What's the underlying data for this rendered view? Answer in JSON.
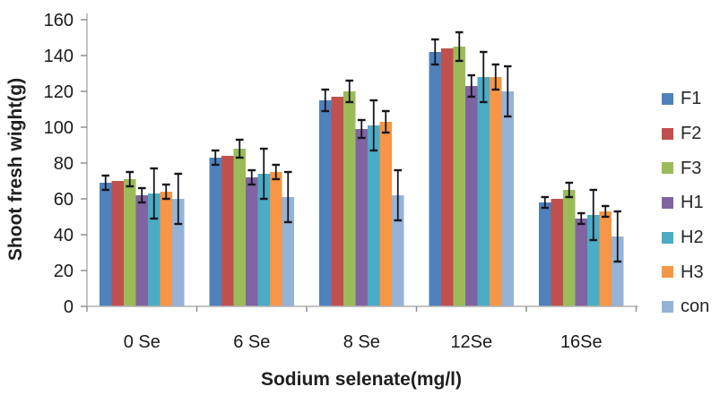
{
  "chart_data": {
    "type": "bar",
    "title": "",
    "xlabel": "Sodium selenate(mg/l)",
    "ylabel": "Shoot fresh wight(g)",
    "categories": [
      "0 Se",
      "6 Se",
      "8 Se",
      "12Se",
      "16Se"
    ],
    "y_axis": {
      "min": 0,
      "max": 160,
      "step": 20,
      "tick_labels": [
        "0",
        "20",
        "40",
        "60",
        "80",
        "100",
        "120",
        "140",
        "160"
      ]
    },
    "grid": false,
    "legend_position": "right",
    "error_bar_color": "#16161f",
    "axis_line_color": "#b0b0b0",
    "tick_color": "#8f8f8f",
    "text_color": "#1a1a1a",
    "series": [
      {
        "name": "F1",
        "color": "#4f81bd",
        "values": [
          69,
          83,
          115,
          142,
          58
        ],
        "errors": [
          4,
          4,
          6,
          7,
          3
        ]
      },
      {
        "name": "F2",
        "color": "#c0504d",
        "values": [
          70,
          84,
          117,
          144,
          60
        ],
        "errors": [
          0,
          0,
          0,
          0,
          0
        ]
      },
      {
        "name": "F3",
        "color": "#9bbb59",
        "values": [
          71,
          88,
          120,
          145,
          65
        ],
        "errors": [
          4,
          5,
          6,
          8,
          4
        ]
      },
      {
        "name": "H1",
        "color": "#8064a2",
        "values": [
          62,
          72,
          99,
          123,
          49
        ],
        "errors": [
          4,
          4,
          5,
          6,
          3
        ]
      },
      {
        "name": "H2",
        "color": "#4bacc6",
        "values": [
          63,
          74,
          101,
          128,
          51
        ],
        "errors": [
          14,
          14,
          14,
          14,
          14
        ]
      },
      {
        "name": "H3",
        "color": "#f79646",
        "values": [
          64,
          75,
          103,
          128,
          53
        ],
        "errors": [
          4,
          4,
          6,
          7,
          3
        ]
      },
      {
        "name": "con",
        "color": "#95b3d7",
        "values": [
          60,
          61,
          62,
          120,
          39
        ],
        "errors": [
          14,
          14,
          14,
          14,
          14
        ]
      }
    ]
  }
}
